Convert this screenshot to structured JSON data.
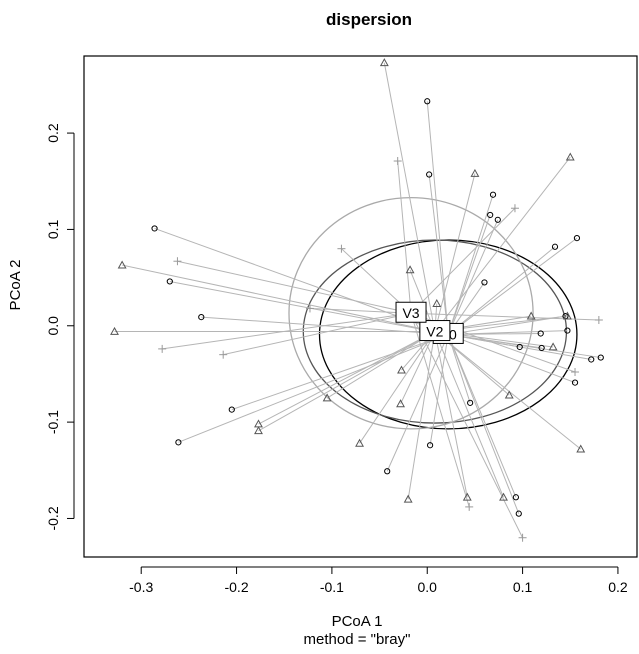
{
  "chart_data": {
    "type": "scatter",
    "title": "dispersion",
    "xlabel": "PCoA 1",
    "ylabel": "PCoA 2",
    "subtitle": "method = \"bray\"",
    "xlim": [
      -0.36,
      0.22
    ],
    "ylim": [
      -0.24,
      0.28
    ],
    "x_ticks": [
      "-0.3",
      "-0.2",
      "-0.1",
      "0.0",
      "0.1",
      "0.2"
    ],
    "y_ticks": [
      "-0.2",
      "-0.1",
      "0.0",
      "0.1",
      "0.2"
    ],
    "grid": false,
    "series": [
      {
        "name": "V0",
        "marker": "circle",
        "color": "#000000",
        "centroid": [
          0.022,
          -0.009
        ],
        "ellipse": {
          "rx": 0.135,
          "ry": 0.098,
          "color": "#000000"
        },
        "points": [
          [
            0.0,
            0.233
          ],
          [
            0.002,
            0.157
          ],
          [
            0.069,
            0.136
          ],
          [
            0.074,
            0.11
          ],
          [
            0.066,
            0.115
          ],
          [
            -0.286,
            0.101
          ],
          [
            0.157,
            0.091
          ],
          [
            0.134,
            0.082
          ],
          [
            -0.27,
            0.046
          ],
          [
            0.06,
            0.045
          ],
          [
            -0.237,
            0.009
          ],
          [
            0.145,
            0.01
          ],
          [
            0.147,
            -0.005
          ],
          [
            0.119,
            -0.008
          ],
          [
            0.097,
            -0.022
          ],
          [
            0.12,
            -0.023
          ],
          [
            0.182,
            -0.033
          ],
          [
            0.172,
            -0.035
          ],
          [
            0.155,
            -0.059
          ],
          [
            0.045,
            -0.08
          ],
          [
            -0.205,
            -0.087
          ],
          [
            0.003,
            -0.124
          ],
          [
            -0.261,
            -0.121
          ],
          [
            -0.042,
            -0.151
          ],
          [
            0.093,
            -0.178
          ],
          [
            0.096,
            -0.195
          ]
        ]
      },
      {
        "name": "V2",
        "marker": "triangle",
        "color": "#555555",
        "centroid": [
          0.008,
          -0.006
        ],
        "ellipse": {
          "rx": 0.138,
          "ry": 0.095,
          "color": "#555555"
        },
        "points": [
          [
            -0.045,
            0.273
          ],
          [
            0.15,
            0.175
          ],
          [
            0.05,
            0.158
          ],
          [
            -0.32,
            0.063
          ],
          [
            -0.018,
            0.058
          ],
          [
            0.01,
            0.023
          ],
          [
            0.109,
            0.01
          ],
          [
            0.147,
            0.01
          ],
          [
            -0.328,
            -0.006
          ],
          [
            0.132,
            -0.022
          ],
          [
            -0.027,
            -0.046
          ],
          [
            0.086,
            -0.072
          ],
          [
            -0.105,
            -0.075
          ],
          [
            -0.028,
            -0.081
          ],
          [
            -0.177,
            -0.102
          ],
          [
            -0.177,
            -0.109
          ],
          [
            -0.071,
            -0.122
          ],
          [
            0.161,
            -0.128
          ],
          [
            -0.02,
            -0.18
          ],
          [
            0.08,
            -0.178
          ],
          [
            0.042,
            -0.178
          ]
        ]
      },
      {
        "name": "V3",
        "marker": "plus",
        "color": "#999999",
        "centroid": [
          -0.017,
          0.013
        ],
        "ellipse": {
          "rx": 0.128,
          "ry": 0.12,
          "color": "#aaaaaa"
        },
        "points": [
          [
            -0.031,
            0.171
          ],
          [
            0.092,
            0.122
          ],
          [
            -0.262,
            0.067
          ],
          [
            -0.09,
            0.08
          ],
          [
            0.18,
            0.006
          ],
          [
            0.155,
            -0.048
          ],
          [
            -0.278,
            -0.024
          ],
          [
            -0.214,
            -0.03
          ],
          [
            -0.123,
            0.018
          ],
          [
            0.044,
            -0.188
          ],
          [
            0.1,
            -0.22
          ]
        ]
      }
    ]
  }
}
